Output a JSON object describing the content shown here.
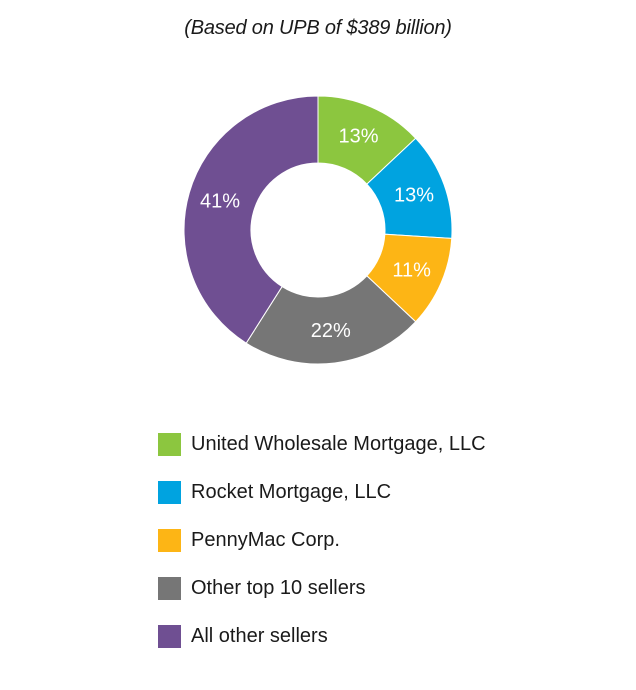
{
  "chart_data": {
    "type": "pie",
    "subtitle": "(Based on UPB of $389 billion)",
    "categories": [
      "United Wholesale Mortgage, LLC",
      "Rocket Mortgage, LLC",
      "PennyMac Corp.",
      "Other top 10 sellers",
      "All other sellers"
    ],
    "values": [
      13,
      13,
      11,
      22,
      41
    ],
    "labels": [
      "13%",
      "13%",
      "11%",
      "22%",
      "41%"
    ],
    "colors": [
      "#8cc63f",
      "#00a3e0",
      "#fdb515",
      "#767676",
      "#6f4f92"
    ],
    "donut": true,
    "legend_position": "bottom"
  }
}
